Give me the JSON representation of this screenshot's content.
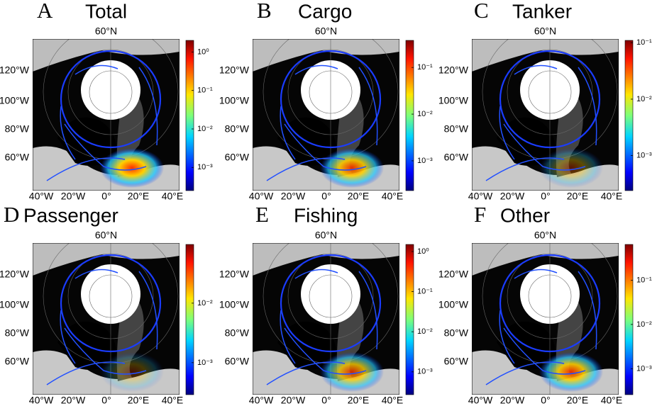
{
  "panels": [
    {
      "letter": "A",
      "title": "Total",
      "lat_label": "60°N",
      "lon_labels_left": [
        "120°W",
        "100°W",
        "80°W",
        "60°W"
      ],
      "lon_labels_bottom": [
        "40°W",
        "20°W",
        "0°",
        "20°E",
        "40°E"
      ],
      "colorbar": {
        "scale": "log",
        "lim": [
          0.00025,
          2
        ],
        "ticks": [
          {
            "value": 1,
            "label": "10⁰"
          },
          {
            "value": 0.1,
            "label": "10⁻¹"
          },
          {
            "value": 0.01,
            "label": "10⁻²"
          },
          {
            "value": 0.001,
            "label": "10⁻³"
          }
        ]
      }
    },
    {
      "letter": "B",
      "title": "Cargo",
      "lat_label": "60°N",
      "lon_labels_left": [
        "120°W",
        "100°W",
        "80°W",
        "60°W"
      ],
      "lon_labels_bottom": [
        "40°W",
        "20°W",
        "0°",
        "20°E",
        "40°E"
      ],
      "colorbar": {
        "scale": "log",
        "lim": [
          0.00023,
          0.38
        ],
        "ticks": [
          {
            "value": 0.1,
            "label": "10⁻¹"
          },
          {
            "value": 0.01,
            "label": "10⁻²"
          },
          {
            "value": 0.001,
            "label": "10⁻³"
          }
        ]
      }
    },
    {
      "letter": "C",
      "title": "Tanker",
      "lat_label": "60°N",
      "lon_labels_left": [
        "120°W",
        "100°W",
        "80°W",
        "60°W"
      ],
      "lon_labels_bottom": [
        "40°W",
        "20°W",
        "0°",
        "20°E",
        "40°E"
      ],
      "colorbar": {
        "scale": "log",
        "lim": [
          0.00024,
          0.11
        ],
        "ticks": [
          {
            "value": 0.1,
            "label": "10⁻¹"
          },
          {
            "value": 0.01,
            "label": "10⁻²"
          },
          {
            "value": 0.001,
            "label": "10⁻³"
          }
        ]
      }
    },
    {
      "letter": "D",
      "title": "Passenger",
      "lat_label": "60°N",
      "lon_labels_left": [
        "120°W",
        "100°W",
        "80°W",
        "60°W"
      ],
      "lon_labels_bottom": [
        "40°W",
        "20°W",
        "0°",
        "20°E",
        "40°E"
      ],
      "colorbar": {
        "scale": "log",
        "lim": [
          0.00029,
          0.097
        ],
        "ticks": [
          {
            "value": 0.01,
            "label": "10⁻²"
          },
          {
            "value": 0.001,
            "label": "10⁻³"
          }
        ]
      }
    },
    {
      "letter": "E",
      "title": "Fishing",
      "lat_label": "60°N",
      "lon_labels_left": [
        "120°W",
        "100°W",
        "80°W",
        "60°W"
      ],
      "lon_labels_bottom": [
        "40°W",
        "20°W",
        "0°",
        "20°E",
        "40°E"
      ],
      "colorbar": {
        "scale": "log",
        "lim": [
          0.00027,
          1.5
        ],
        "ticks": [
          {
            "value": 1,
            "label": "10⁰"
          },
          {
            "value": 0.1,
            "label": "10⁻¹"
          },
          {
            "value": 0.01,
            "label": "10⁻²"
          },
          {
            "value": 0.001,
            "label": "10⁻³"
          }
        ]
      }
    },
    {
      "letter": "F",
      "title": "Other",
      "lat_label": "60°N",
      "lon_labels_left": [
        "120°W",
        "100°W",
        "80°W",
        "60°W"
      ],
      "lon_labels_bottom": [
        "40°W",
        "20°W",
        "0°",
        "20°E",
        "40°E"
      ],
      "colorbar": {
        "scale": "log",
        "lim": [
          0.00026,
          0.64
        ],
        "ticks": [
          {
            "value": 0.1,
            "label": "10⁻¹"
          },
          {
            "value": 0.01,
            "label": "10⁻²"
          },
          {
            "value": 0.001,
            "label": "10⁻³"
          }
        ]
      }
    }
  ]
}
